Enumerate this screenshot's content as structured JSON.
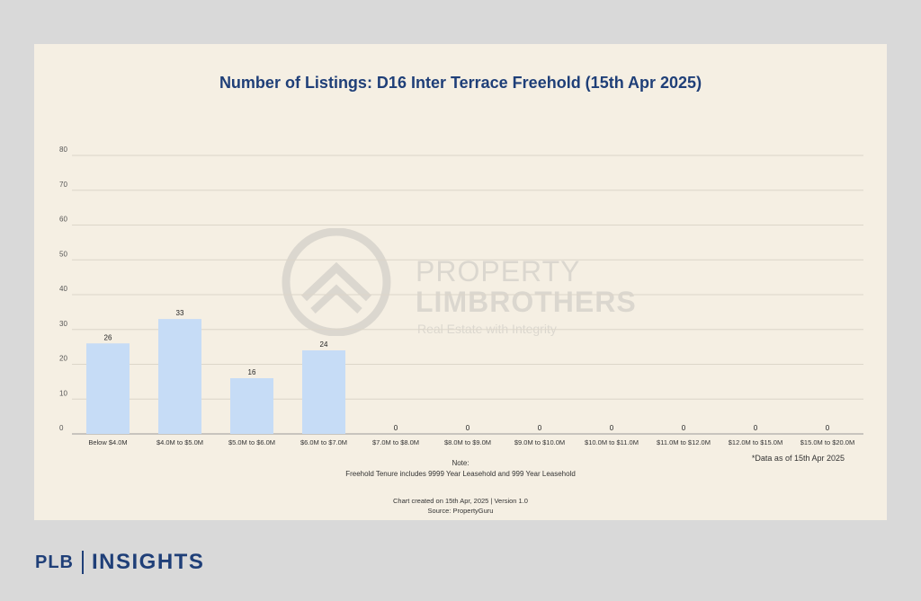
{
  "chart_data": {
    "type": "bar",
    "title": "Number of Listings: D16 Inter Terrace Freehold (15th Apr 2025)",
    "categories": [
      "Below $4.0M",
      "$4.0M to $5.0M",
      "$5.0M to $6.0M",
      "$6.0M to $7.0M",
      "$7.0M to $8.0M",
      "$8.0M to $9.0M",
      "$9.0M to $10.0M",
      "$10.0M to $11.0M",
      "$11.0M to $12.0M",
      "$12.0M to $15.0M",
      "$15.0M to $20.0M"
    ],
    "values": [
      26,
      33,
      16,
      24,
      0,
      0,
      0,
      0,
      0,
      0,
      0
    ],
    "ylim": [
      0,
      80
    ],
    "yticks": [
      0,
      10,
      20,
      30,
      40,
      50,
      60,
      70,
      80
    ],
    "grid": true,
    "bar_color": "#c6dcf6"
  },
  "watermark": {
    "line1": "PROPERTY",
    "line2": "LIMBROTHERS",
    "tagline": "Real Estate with Integrity"
  },
  "notes": {
    "as_of": "*Data as of 15th Apr 2025",
    "note_title": "Note:",
    "note_body": "Freehold Tenure includes 9999 Year Leasehold and 999 Year Leasehold",
    "created": "Chart created on 15th Apr, 2025 | Version 1.0",
    "source": "Source: PropertyGuru"
  },
  "brand": {
    "plb": "PLB",
    "insights": "INSIGHTS",
    "color": "#1f3f78"
  }
}
